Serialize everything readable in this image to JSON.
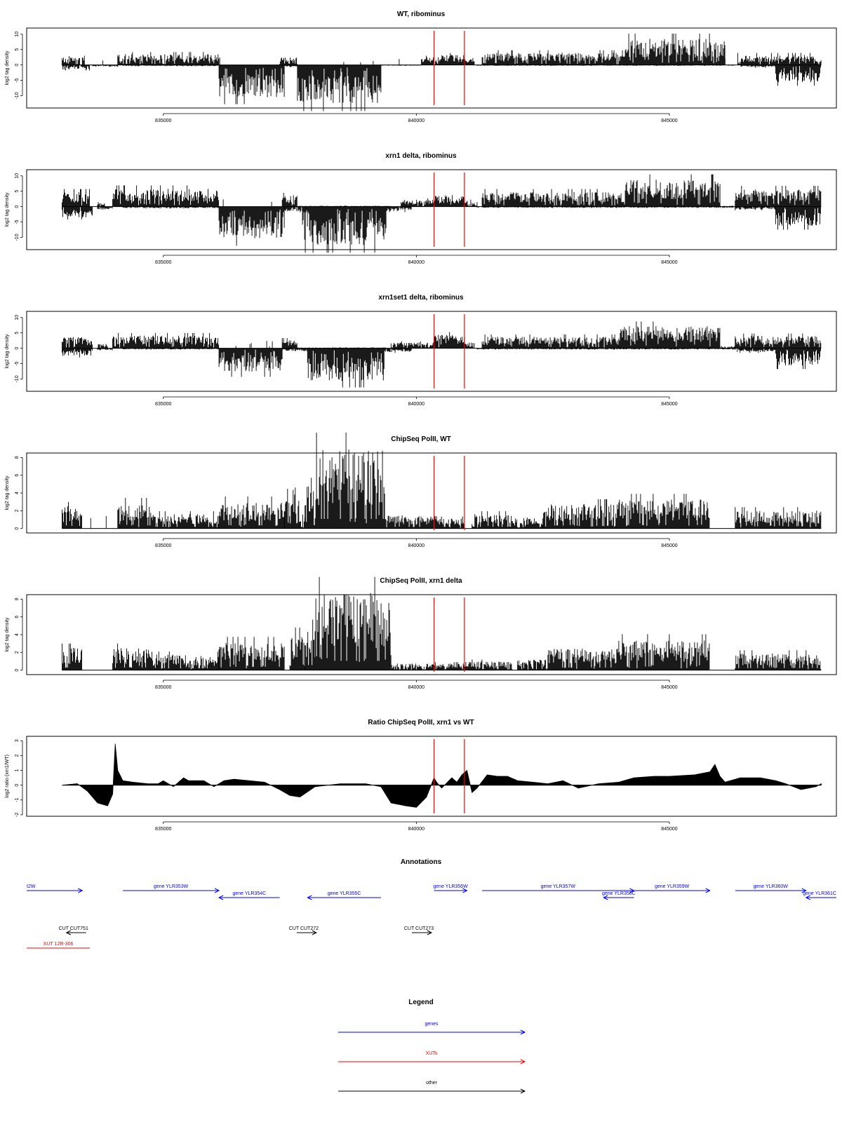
{
  "chart_data": [
    {
      "type": "bar",
      "title": "WT, ribominus",
      "ylabel": "log2 tag density",
      "ylim": [
        -14,
        12
      ],
      "yticks": [
        -10,
        -5,
        0,
        5,
        10
      ],
      "xlim": [
        832300,
        848300
      ],
      "xticks": [
        835000,
        840000,
        845000
      ],
      "markers": [
        840350,
        840950
      ],
      "baseline": 0,
      "series": [
        {
          "strand": "forward",
          "segments": [
            [
              833000,
              833350,
              2.4
            ],
            [
              833400,
              833450,
              2.0
            ],
            [
              833500,
              834100,
              0.0
            ],
            [
              834100,
              836100,
              2.8
            ],
            [
              836100,
              837250,
              0.0
            ],
            [
              837300,
              837650,
              2.0
            ],
            [
              837650,
              840100,
              0.0
            ],
            [
              840100,
              840450,
              2.0
            ],
            [
              840450,
              840950,
              2.6
            ],
            [
              840950,
              841150,
              1.5
            ],
            [
              841300,
              844100,
              3.2
            ],
            [
              844100,
              846100,
              6.8
            ],
            [
              846100,
              846350,
              0.0
            ],
            [
              846350,
              847900,
              2.6
            ],
            [
              847900,
              848000,
              1.0
            ]
          ]
        },
        {
          "strand": "reverse",
          "segments": [
            [
              833000,
              833550,
              -1.2
            ],
            [
              833600,
              834100,
              -0.4
            ],
            [
              834200,
              836100,
              -0.3
            ],
            [
              836100,
              837400,
              -8.5
            ],
            [
              837400,
              837650,
              -0.6
            ],
            [
              837650,
              839300,
              -10.0
            ],
            [
              839300,
              840100,
              -0.2
            ],
            [
              841200,
              846300,
              -0.2
            ],
            [
              846400,
              847100,
              -0.6
            ],
            [
              847100,
              848000,
              -4.5
            ]
          ]
        }
      ]
    },
    {
      "type": "bar",
      "title": "xrn1 delta, ribominus",
      "ylabel": "log2 tag density",
      "ylim": [
        -14,
        12
      ],
      "yticks": [
        -10,
        -5,
        0,
        5,
        10
      ],
      "xlim": [
        832300,
        848300
      ],
      "xticks": [
        835000,
        840000,
        845000
      ],
      "markers": [
        840350,
        840950
      ],
      "baseline": 0,
      "series": [
        {
          "strand": "forward",
          "segments": [
            [
              833000,
              833550,
              3.8
            ],
            [
              833700,
              833850,
              1.0
            ],
            [
              834000,
              836100,
              4.6
            ],
            [
              836100,
              837350,
              0.0
            ],
            [
              837350,
              837650,
              3.0
            ],
            [
              837650,
              839500,
              0.2
            ],
            [
              839700,
              840350,
              1.8
            ],
            [
              840350,
              840950,
              3.0
            ],
            [
              840950,
              841200,
              1.5
            ],
            [
              841300,
              844100,
              3.8
            ],
            [
              844100,
              846000,
              7.0
            ],
            [
              846000,
              846300,
              0.2
            ],
            [
              846300,
              848000,
              4.5
            ]
          ]
        },
        {
          "strand": "reverse",
          "segments": [
            [
              833000,
              833600,
              -2.8
            ],
            [
              833700,
              834000,
              -0.8
            ],
            [
              834200,
              836100,
              -0.4
            ],
            [
              836100,
              837400,
              -8.5
            ],
            [
              837400,
              837750,
              -1.5
            ],
            [
              837750,
              839400,
              -10.0
            ],
            [
              839400,
              839900,
              -1.2
            ],
            [
              841200,
              846300,
              -0.3
            ],
            [
              846300,
              847100,
              -0.8
            ],
            [
              847100,
              848000,
              -5.0
            ]
          ]
        }
      ]
    },
    {
      "type": "bar",
      "title": "xrn1set1 delta, ribominus",
      "ylabel": "log2 tag density",
      "ylim": [
        -14,
        12
      ],
      "yticks": [
        -10,
        -5,
        0,
        5,
        10
      ],
      "xlim": [
        832300,
        848300
      ],
      "xticks": [
        835000,
        840000,
        845000
      ],
      "markers": [
        840350,
        840950
      ],
      "baseline": 0,
      "series": [
        {
          "strand": "forward",
          "segments": [
            [
              833000,
              833600,
              3.0
            ],
            [
              833700,
              833900,
              1.2
            ],
            [
              834000,
              836100,
              3.3
            ],
            [
              836100,
              837350,
              0.0
            ],
            [
              837350,
              837650,
              2.2
            ],
            [
              837650,
              839400,
              0.2
            ],
            [
              839500,
              840350,
              1.5
            ],
            [
              840350,
              840950,
              3.5
            ],
            [
              840950,
              841150,
              1.5
            ],
            [
              841300,
              844000,
              3.0
            ],
            [
              844000,
              846000,
              5.8
            ],
            [
              846000,
              846300,
              0.5
            ],
            [
              846300,
              848000,
              3.2
            ]
          ]
        },
        {
          "strand": "reverse",
          "segments": [
            [
              833000,
              833600,
              -2.0
            ],
            [
              833700,
              834000,
              -0.5
            ],
            [
              834200,
              836100,
              -0.3
            ],
            [
              836100,
              837350,
              -6.2
            ],
            [
              837350,
              837850,
              -0.8
            ],
            [
              837850,
              839400,
              -8.5
            ],
            [
              839400,
              839900,
              -1.0
            ],
            [
              841200,
              846300,
              -0.3
            ],
            [
              846300,
              847100,
              -1.0
            ],
            [
              847100,
              848000,
              -4.5
            ]
          ]
        }
      ]
    },
    {
      "type": "bar",
      "title": "ChipSeq PolII, WT",
      "ylabel": "log2 tag density",
      "ylim": [
        -0.5,
        8.5
      ],
      "yticks": [
        0,
        2,
        4,
        6,
        8
      ],
      "xlim": [
        832300,
        848300
      ],
      "xticks": [
        835000,
        840000,
        845000
      ],
      "markers": [
        840350,
        840950
      ],
      "baseline": 0,
      "series": [
        {
          "strand": "signal",
          "segments": [
            [
              833000,
              833400,
              2.0
            ],
            [
              833400,
              834100,
              0.0
            ],
            [
              834100,
              834800,
              2.3
            ],
            [
              834800,
              836100,
              1.3
            ],
            [
              836100,
              837400,
              2.4
            ],
            [
              837400,
              837700,
              3.8
            ],
            [
              837700,
              837800,
              1.3
            ],
            [
              837800,
              838000,
              5.0
            ],
            [
              838000,
              839400,
              7.2
            ],
            [
              839400,
              840400,
              1.2
            ],
            [
              840400,
              840950,
              0.9
            ],
            [
              841100,
              841900,
              1.3
            ],
            [
              841900,
              842500,
              1.0
            ],
            [
              842500,
              844000,
              2.2
            ],
            [
              844000,
              845800,
              2.6
            ],
            [
              846300,
              848000,
              1.6
            ]
          ]
        }
      ]
    },
    {
      "type": "bar",
      "title": "ChipSeq PolII, xrn1 delta",
      "ylabel": "log2 tag density",
      "ylim": [
        -0.5,
        8.5
      ],
      "yticks": [
        0,
        2,
        4,
        6,
        8
      ],
      "xlim": [
        832300,
        848300
      ],
      "xticks": [
        835000,
        840000,
        845000
      ],
      "markers": [
        840350,
        840950
      ],
      "baseline": 0,
      "series": [
        {
          "strand": "signal",
          "segments": [
            [
              833000,
              833400,
              2.0
            ],
            [
              834000,
              834800,
              2.0
            ],
            [
              834800,
              836100,
              1.4
            ],
            [
              836100,
              837400,
              2.5
            ],
            [
              837500,
              837800,
              3.2
            ],
            [
              837800,
              838000,
              3.8
            ],
            [
              838000,
              839500,
              7.0
            ],
            [
              839500,
              840400,
              0.6
            ],
            [
              840400,
              840950,
              0.6
            ],
            [
              840950,
              841900,
              0.8
            ],
            [
              842000,
              842600,
              1.0
            ],
            [
              842600,
              844000,
              2.0
            ],
            [
              844000,
              845800,
              2.7
            ],
            [
              846300,
              848000,
              1.5
            ]
          ]
        }
      ]
    },
    {
      "type": "area",
      "title": "Ratio ChipSeq PolII, xrn1 vs WT",
      "ylabel": "log2 ratio (xrn1/WT)",
      "ylim": [
        -2.1,
        3.3
      ],
      "yticks": [
        -2,
        -1,
        0,
        1,
        2,
        3
      ],
      "xlim": [
        832300,
        848300
      ],
      "xticks": [
        835000,
        840000,
        845000
      ],
      "markers": [
        840350,
        840950
      ],
      "baseline": 0,
      "x": [
        833000,
        833300,
        833500,
        833700,
        833900,
        834000,
        834050,
        834100,
        834200,
        834400,
        834700,
        834900,
        835000,
        835200,
        835400,
        835500,
        835800,
        836000,
        836200,
        836400,
        836700,
        837000,
        837300,
        837500,
        837700,
        838000,
        838500,
        839000,
        839300,
        839500,
        839800,
        840000,
        840200,
        840350,
        840400,
        840500,
        840700,
        840800,
        840900,
        841000,
        841100,
        841200,
        841400,
        841600,
        841800,
        842000,
        842300,
        842600,
        842900,
        843200,
        843600,
        844000,
        844300,
        844700,
        845000,
        845500,
        845800,
        845900,
        846000,
        846100,
        846400,
        846800,
        847100,
        847300,
        847600,
        847900,
        848000
      ],
      "y": [
        0.0,
        0.1,
        -0.4,
        -1.2,
        -1.4,
        -0.6,
        2.8,
        1.0,
        0.3,
        0.2,
        0.1,
        0.1,
        0.3,
        -0.1,
        0.5,
        0.3,
        0.3,
        -0.1,
        0.3,
        0.4,
        0.3,
        0.2,
        -0.3,
        -0.7,
        -0.8,
        -0.1,
        0.1,
        0.1,
        -0.1,
        -1.2,
        -1.4,
        -1.5,
        -0.8,
        0.5,
        0.2,
        -0.2,
        0.5,
        0.2,
        0.7,
        1.0,
        -0.5,
        -0.2,
        0.7,
        0.6,
        0.6,
        0.3,
        0.2,
        0.1,
        0.3,
        -0.2,
        0.1,
        0.2,
        0.5,
        0.6,
        0.6,
        0.7,
        0.9,
        1.4,
        0.6,
        0.2,
        0.5,
        0.5,
        0.3,
        0.1,
        -0.3,
        -0.1,
        0.1
      ]
    }
  ],
  "annotations": {
    "title": "Annotations",
    "features": [
      {
        "label": "t2W",
        "type": "gene",
        "start": 832300,
        "end": 833400,
        "strand": "+",
        "row": 0,
        "color": "#0000ff"
      },
      {
        "label": "gene YLR353W",
        "type": "gene",
        "start": 834200,
        "end": 836100,
        "strand": "+",
        "row": 0,
        "color": "#0000ff"
      },
      {
        "label": "gene YLR354C",
        "type": "gene",
        "start": 836100,
        "end": 837300,
        "strand": "-",
        "row": 1,
        "color": "#0000ff"
      },
      {
        "label": "gene YLR355C",
        "type": "gene",
        "start": 837850,
        "end": 839300,
        "strand": "-",
        "row": 1,
        "color": "#0000ff"
      },
      {
        "label": "gene YLR356W",
        "type": "gene",
        "start": 840350,
        "end": 841000,
        "strand": "+",
        "row": 0,
        "color": "#0000ff"
      },
      {
        "label": "gene YLR357W",
        "type": "gene",
        "start": 841300,
        "end": 844300,
        "strand": "+",
        "row": 0,
        "color": "#0000ff"
      },
      {
        "label": "gene YLR358C",
        "type": "gene",
        "start": 843700,
        "end": 844300,
        "strand": "-",
        "row": 1,
        "color": "#0000ff"
      },
      {
        "label": "gene YLR359W",
        "type": "gene",
        "start": 844300,
        "end": 845800,
        "strand": "+",
        "row": 0,
        "color": "#0000ff"
      },
      {
        "label": "gene YLR360W",
        "type": "gene",
        "start": 846300,
        "end": 847700,
        "strand": "+",
        "row": 0,
        "color": "#0000ff"
      },
      {
        "label": "gene YLR361C",
        "type": "gene",
        "start": 847700,
        "end": 848300,
        "strand": "-",
        "row": 1,
        "color": "#0000ff"
      },
      {
        "label": "CUT CUT751",
        "type": "other",
        "start": 833000,
        "end": 833450,
        "strand": "-",
        "row": 3,
        "color": "#000000"
      },
      {
        "label": "CUT CUT272",
        "type": "other",
        "start": 837550,
        "end": 838000,
        "strand": "+",
        "row": 3,
        "color": "#000000"
      },
      {
        "label": "CUT CUT273",
        "type": "other",
        "start": 839800,
        "end": 840300,
        "strand": "+",
        "row": 3,
        "color": "#000000"
      },
      {
        "label": "XUT 12R-306",
        "type": "xut",
        "start": 832300,
        "end": 833550,
        "strand": "none",
        "row": 4,
        "color": "#ff0000"
      }
    ]
  },
  "legend": {
    "title": "Legend",
    "items": [
      {
        "label": "genes",
        "color": "#0000ff"
      },
      {
        "label": "XUTs",
        "color": "#ff0000"
      },
      {
        "label": "other",
        "color": "#000000"
      }
    ]
  },
  "colors": {
    "signal": "#000000",
    "marker": "#ff0000",
    "frame": "#000000"
  }
}
